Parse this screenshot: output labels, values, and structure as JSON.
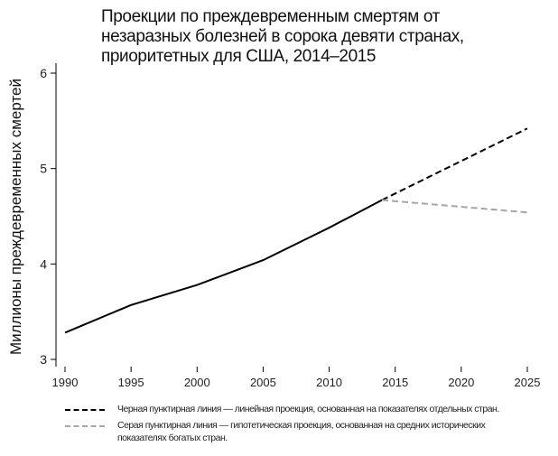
{
  "chart_data": {
    "type": "line",
    "title": [
      "Проекции по преждевременным смертям от",
      "незаразных болезней в сорока девяти странах,",
      "приоритетных для США, 2014–2015"
    ],
    "ylabel": "Миллионы преждевременных смертей",
    "xlabel": "",
    "xlim": [
      1990,
      2025
    ],
    "ylim": [
      2.9,
      6.1
    ],
    "xticks": [
      1990,
      1995,
      2000,
      2005,
      2010,
      2015,
      2020,
      2025
    ],
    "yticks": [
      3,
      4,
      5,
      6
    ],
    "grid": false,
    "legend_placement": "bottom",
    "series": [
      {
        "style": "solid",
        "color": "#000000",
        "x": [
          1990,
          1995,
          2000,
          2005,
          2010,
          2014
        ],
        "y": [
          3.28,
          3.57,
          3.78,
          4.04,
          4.38,
          4.67
        ]
      },
      {
        "style": "dashed",
        "color": "#000000",
        "x": [
          2014,
          2025
        ],
        "y": [
          4.67,
          5.42
        ]
      },
      {
        "style": "dashed",
        "color": "#a6a6a6",
        "x": [
          2014,
          2025
        ],
        "y": [
          4.67,
          4.54
        ]
      }
    ],
    "legend": [
      {
        "color": "#000000",
        "label": "Черная пунктирная линия — линейная проекция, основанная на показателях отдельных стран."
      },
      {
        "color": "#a6a6a6",
        "label": "Серая пунктирная линия — гипотетическая проекция, основанная на средних исторических показателях богатых стран."
      }
    ]
  }
}
